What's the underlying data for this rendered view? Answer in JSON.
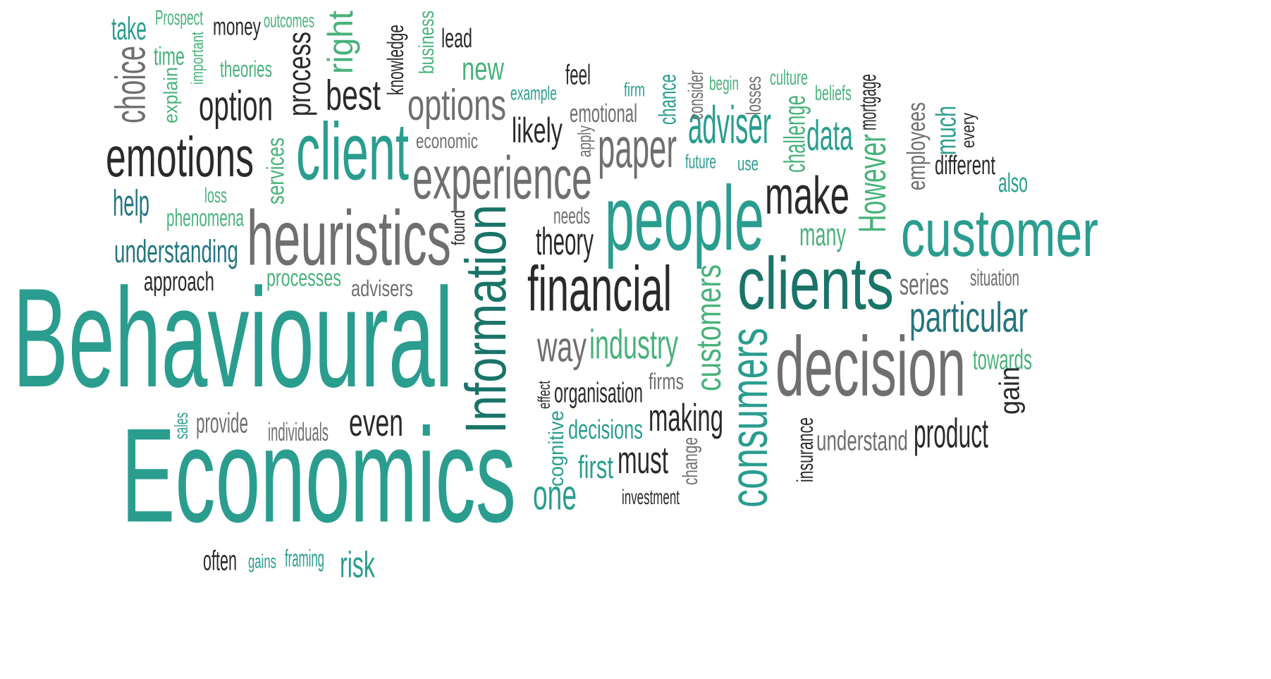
{
  "palette": {
    "teal": "#2a9d8f",
    "deep_teal": "#1a7468",
    "mint": "#48b27a",
    "dark": "#2a2a2a",
    "grey": "#6f6f6f",
    "blue_teal": "#247580"
  },
  "words": [
    {
      "text": "Behavioural",
      "color": "teal"
    },
    {
      "text": "Economics",
      "color": "teal"
    },
    {
      "text": "heuristics",
      "color": "grey"
    },
    {
      "text": "people",
      "color": "teal"
    },
    {
      "text": "customer",
      "color": "teal"
    },
    {
      "text": "clients",
      "color": "deep_teal"
    },
    {
      "text": "decision",
      "color": "grey"
    },
    {
      "text": "client",
      "color": "teal"
    },
    {
      "text": "experience",
      "color": "grey"
    },
    {
      "text": "emotions",
      "color": "dark"
    },
    {
      "text": "Information",
      "color": "deep_teal"
    },
    {
      "text": "financial",
      "color": "dark"
    },
    {
      "text": "make",
      "color": "dark"
    },
    {
      "text": "consumers",
      "color": "teal"
    },
    {
      "text": "customers",
      "color": "mint"
    },
    {
      "text": "options",
      "color": "grey"
    },
    {
      "text": "paper",
      "color": "grey"
    },
    {
      "text": "adviser",
      "color": "teal"
    },
    {
      "text": "option",
      "color": "dark"
    },
    {
      "text": "best",
      "color": "dark"
    },
    {
      "text": "process",
      "color": "dark"
    },
    {
      "text": "choice",
      "color": "grey"
    },
    {
      "text": "particular",
      "color": "blue_teal"
    },
    {
      "text": "product",
      "color": "dark"
    },
    {
      "text": "even",
      "color": "dark"
    },
    {
      "text": "way",
      "color": "grey"
    },
    {
      "text": "industry",
      "color": "mint"
    },
    {
      "text": "making",
      "color": "dark"
    },
    {
      "text": "must",
      "color": "dark"
    },
    {
      "text": "one",
      "color": "teal"
    },
    {
      "text": "first",
      "color": "teal"
    },
    {
      "text": "decisions",
      "color": "teal"
    },
    {
      "text": "understand",
      "color": "grey"
    },
    {
      "text": "organisation",
      "color": "dark"
    },
    {
      "text": "theory",
      "color": "dark"
    },
    {
      "text": "likely",
      "color": "dark"
    },
    {
      "text": "data",
      "color": "teal"
    },
    {
      "text": "many",
      "color": "mint"
    },
    {
      "text": "However",
      "color": "mint"
    },
    {
      "text": "understanding",
      "color": "blue_teal"
    },
    {
      "text": "phenomena",
      "color": "mint"
    },
    {
      "text": "approach",
      "color": "dark"
    },
    {
      "text": "processes",
      "color": "mint"
    },
    {
      "text": "advisers",
      "color": "grey"
    },
    {
      "text": "help",
      "color": "blue_teal"
    },
    {
      "text": "services",
      "color": "mint"
    },
    {
      "text": "loss",
      "color": "mint"
    },
    {
      "text": "take",
      "color": "teal"
    },
    {
      "text": "Prospect",
      "color": "mint"
    },
    {
      "text": "money",
      "color": "dark"
    },
    {
      "text": "outcomes",
      "color": "mint"
    },
    {
      "text": "right",
      "color": "mint"
    },
    {
      "text": "business",
      "color": "mint"
    },
    {
      "text": "knowledge",
      "color": "dark"
    },
    {
      "text": "lead",
      "color": "dark"
    },
    {
      "text": "new",
      "color": "mint"
    },
    {
      "text": "time",
      "color": "mint"
    },
    {
      "text": "important",
      "color": "mint"
    },
    {
      "text": "theories",
      "color": "mint"
    },
    {
      "text": "explain",
      "color": "mint"
    },
    {
      "text": "example",
      "color": "teal"
    },
    {
      "text": "feel",
      "color": "dark"
    },
    {
      "text": "emotional",
      "color": "grey"
    },
    {
      "text": "economic",
      "color": "grey"
    },
    {
      "text": "apply",
      "color": "grey"
    },
    {
      "text": "firm",
      "color": "teal"
    },
    {
      "text": "chance",
      "color": "teal"
    },
    {
      "text": "consider",
      "color": "grey"
    },
    {
      "text": "begin",
      "color": "mint"
    },
    {
      "text": "losses",
      "color": "grey"
    },
    {
      "text": "culture",
      "color": "mint"
    },
    {
      "text": "beliefs",
      "color": "mint"
    },
    {
      "text": "mortgage",
      "color": "dark"
    },
    {
      "text": "future",
      "color": "teal"
    },
    {
      "text": "use",
      "color": "teal"
    },
    {
      "text": "challenge",
      "color": "mint"
    },
    {
      "text": "employees",
      "color": "grey"
    },
    {
      "text": "much",
      "color": "teal"
    },
    {
      "text": "every",
      "color": "dark"
    },
    {
      "text": "different",
      "color": "dark"
    },
    {
      "text": "also",
      "color": "teal"
    },
    {
      "text": "needs",
      "color": "grey"
    },
    {
      "text": "found",
      "color": "dark"
    },
    {
      "text": "series",
      "color": "grey"
    },
    {
      "text": "situation",
      "color": "grey"
    },
    {
      "text": "towards",
      "color": "mint"
    },
    {
      "text": "gain",
      "color": "dark"
    },
    {
      "text": "firms",
      "color": "grey"
    },
    {
      "text": "effect",
      "color": "dark"
    },
    {
      "text": "cognitive",
      "color": "teal"
    },
    {
      "text": "change",
      "color": "grey"
    },
    {
      "text": "investment",
      "color": "dark"
    },
    {
      "text": "insurance",
      "color": "dark"
    },
    {
      "text": "sales",
      "color": "teal"
    },
    {
      "text": "provide",
      "color": "grey"
    },
    {
      "text": "individuals",
      "color": "grey"
    },
    {
      "text": "often",
      "color": "dark"
    },
    {
      "text": "gains",
      "color": "teal"
    },
    {
      "text": "framing",
      "color": "teal"
    },
    {
      "text": "risk",
      "color": "teal"
    }
  ]
}
